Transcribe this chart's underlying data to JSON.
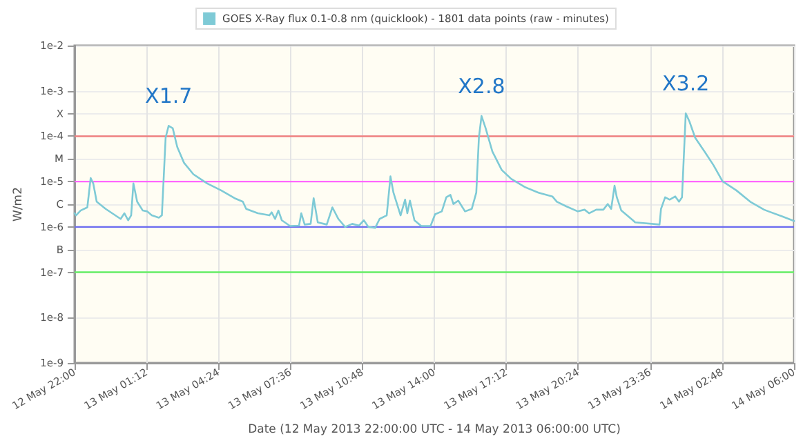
{
  "chart_data": {
    "type": "line",
    "xlabel": "Date (12 May 2013 22:00:00 UTC - 14 May 2013 06:00:00 UTC)",
    "ylabel": "W/m2",
    "legend": "top",
    "log": "y",
    "grid": true,
    "marker": "none",
    "line_style": "solid",
    "xlim": [
      "2013-05-12T22:00",
      "2013-05-14T06:00"
    ],
    "xticks": [
      {
        "value": "2013-05-12T22:00",
        "label": "12 May 22:00"
      },
      {
        "value": "2013-05-13T01:12",
        "label": "13 May 01:12"
      },
      {
        "value": "2013-05-13T04:24",
        "label": "13 May 04:24"
      },
      {
        "value": "2013-05-13T07:36",
        "label": "13 May 07:36"
      },
      {
        "value": "2013-05-13T10:48",
        "label": "13 May 10:48"
      },
      {
        "value": "2013-05-13T14:00",
        "label": "13 May 14:00"
      },
      {
        "value": "2013-05-13T17:12",
        "label": "13 May 17:12"
      },
      {
        "value": "2013-05-13T20:24",
        "label": "13 May 20:24"
      },
      {
        "value": "2013-05-13T23:36",
        "label": "13 May 23:36"
      },
      {
        "value": "2013-05-14T02:48",
        "label": "14 May 02:48"
      },
      {
        "value": "2013-05-14T06:00",
        "label": "14 May 06:00"
      }
    ],
    "ylim": [
      1e-09,
      0.01
    ],
    "yticks": [
      {
        "value": 1e-09,
        "label": "1e-9"
      },
      {
        "value": 1e-08,
        "label": "1e-8"
      },
      {
        "value": 1e-07,
        "label": "1e-7"
      },
      {
        "value": 3.16e-07,
        "label": "B"
      },
      {
        "value": 1e-06,
        "label": "1e-6"
      },
      {
        "value": 3.16e-06,
        "label": "C"
      },
      {
        "value": 1e-05,
        "label": "1e-5"
      },
      {
        "value": 3.16e-05,
        "label": "M"
      },
      {
        "value": 0.0001,
        "label": "1e-4"
      },
      {
        "value": 0.000316,
        "label": "X"
      },
      {
        "value": 0.001,
        "label": "1e-3"
      },
      {
        "value": 0.01,
        "label": "1e-2"
      }
    ],
    "ref_lines": [
      {
        "axis": "y",
        "value": 0.0001,
        "color": "#f08080"
      },
      {
        "axis": "y",
        "value": 1e-05,
        "color": "#ff66ff"
      },
      {
        "axis": "y",
        "value": 1e-06,
        "color": "#6b6bf0"
      },
      {
        "axis": "y",
        "value": 1e-07,
        "color": "#66ee66"
      }
    ],
    "annotations": [
      {
        "text": "X1.7",
        "x": "2013-05-13T02:11",
        "y": 0.00017
      },
      {
        "text": "X2.8",
        "x": "2013-05-13T16:06",
        "y": 0.00028
      },
      {
        "text": "X3.2",
        "x": "2013-05-14T01:11",
        "y": 0.00032
      }
    ],
    "series": [
      {
        "name": "GOES X-Ray flux 0.1-0.8 nm (quicklook) - 1801 data points (raw - minutes)",
        "color": "#7ecad6",
        "x": [
          "2013-05-12T22:00",
          "2013-05-12T22:04",
          "2013-05-12T22:16",
          "2013-05-12T22:34",
          "2013-05-12T22:43",
          "2013-05-12T22:50",
          "2013-05-12T22:59",
          "2013-05-12T23:23",
          "2013-05-13T00:03",
          "2013-05-13T00:13",
          "2013-05-13T00:23",
          "2013-05-13T00:31",
          "2013-05-13T00:37",
          "2013-05-13T00:47",
          "2013-05-13T01:02",
          "2013-05-13T01:14",
          "2013-05-13T01:26",
          "2013-05-13T01:45",
          "2013-05-13T01:53",
          "2013-05-13T02:03",
          "2013-05-13T02:11",
          "2013-05-13T02:22",
          "2013-05-13T02:34",
          "2013-05-13T02:52",
          "2013-05-13T03:17",
          "2013-05-13T03:54",
          "2013-05-13T04:31",
          "2013-05-13T05:07",
          "2013-05-13T05:29",
          "2013-05-13T05:38",
          "2013-05-13T06:09",
          "2013-05-13T06:40",
          "2013-05-13T06:46",
          "2013-05-13T06:55",
          "2013-05-13T07:04",
          "2013-05-13T07:13",
          "2013-05-13T07:35",
          "2013-05-13T07:59",
          "2013-05-13T08:05",
          "2013-05-13T08:14",
          "2013-05-13T08:30",
          "2013-05-13T08:38",
          "2013-05-13T08:49",
          "2013-05-13T09:13",
          "2013-05-13T09:28",
          "2013-05-13T09:44",
          "2013-05-13T10:02",
          "2013-05-13T10:21",
          "2013-05-13T10:39",
          "2013-05-13T10:52",
          "2013-05-13T11:04",
          "2013-05-13T11:22",
          "2013-05-13T11:34",
          "2013-05-13T11:53",
          "2013-05-13T12:03",
          "2013-05-13T12:11",
          "2013-05-13T12:30",
          "2013-05-13T12:42",
          "2013-05-13T12:48",
          "2013-05-13T12:55",
          "2013-05-13T13:07",
          "2013-05-13T13:25",
          "2013-05-13T13:50",
          "2013-05-13T14:02",
          "2013-05-13T14:20",
          "2013-05-13T14:32",
          "2013-05-13T14:43",
          "2013-05-13T14:51",
          "2013-05-13T15:04",
          "2013-05-13T15:22",
          "2013-05-13T15:40",
          "2013-05-13T15:52",
          "2013-05-13T15:59",
          "2013-05-13T16:06",
          "2013-05-13T16:17",
          "2013-05-13T16:35",
          "2013-05-13T17:00",
          "2013-05-13T17:25",
          "2013-05-13T18:01",
          "2013-05-13T18:38",
          "2013-05-13T19:15",
          "2013-05-13T19:27",
          "2013-05-13T19:52",
          "2013-05-13T20:23",
          "2013-05-13T20:41",
          "2013-05-13T20:53",
          "2013-05-13T21:12",
          "2013-05-13T21:31",
          "2013-05-13T21:43",
          "2013-05-13T21:52",
          "2013-05-13T22:01",
          "2013-05-13T22:07",
          "2013-05-13T22:19",
          "2013-05-13T22:50",
          "2013-05-13T22:56",
          "2013-05-14T00:01",
          "2013-05-14T00:05",
          "2013-05-14T00:16",
          "2013-05-14T00:28",
          "2013-05-14T00:43",
          "2013-05-14T00:53",
          "2013-05-14T01:01",
          "2013-05-14T01:11",
          "2013-05-14T01:21",
          "2013-05-14T01:36",
          "2013-05-14T02:01",
          "2013-05-14T02:25",
          "2013-05-14T02:49",
          "2013-05-14T03:26",
          "2013-05-14T04:03",
          "2013-05-14T04:40",
          "2013-05-14T04:52",
          "2013-05-14T05:29",
          "2013-05-14T06:00"
        ],
        "values": [
          2e-06,
          1.8e-06,
          2.3e-06,
          2.7e-06,
          1.2e-05,
          9e-06,
          3.6e-06,
          2.5e-06,
          1.5e-06,
          2e-06,
          1.4e-06,
          1.8e-06,
          9.1e-06,
          3.6e-06,
          2.3e-06,
          2.2e-06,
          1.8e-06,
          1.6e-06,
          1.8e-06,
          9.3e-05,
          0.00017,
          0.00015,
          5.8e-05,
          2.6e-05,
          1.45e-05,
          9.1e-06,
          6.4e-06,
          4.3e-06,
          3.6e-06,
          2.5e-06,
          2e-06,
          1.8e-06,
          2.1e-06,
          1.5e-06,
          2.3e-06,
          1.4e-06,
          1.05e-06,
          1.07e-06,
          2e-06,
          1.13e-06,
          1.17e-06,
          4.3e-06,
          1.26e-06,
          1.13e-06,
          2.7e-06,
          1.5e-06,
          1e-06,
          1.17e-06,
          1.07e-06,
          1.4e-06,
          1e-06,
          9.5e-07,
          1.5e-06,
          1.8e-06,
          1.3e-05,
          5.7e-06,
          1.8e-06,
          4e-06,
          2e-06,
          3.8e-06,
          1.4e-06,
          1.05e-06,
          1.05e-06,
          1.9e-06,
          2.2e-06,
          4.5e-06,
          5.1e-06,
          3.2e-06,
          3.8e-06,
          2.2e-06,
          2.5e-06,
          5.7e-06,
          9.3e-05,
          0.00028,
          0.00015,
          4.6e-05,
          1.8e-05,
          1.15e-05,
          7.6e-06,
          5.7e-06,
          4.7e-06,
          3.6e-06,
          2.85e-06,
          2.2e-06,
          2.4e-06,
          2e-06,
          2.4e-06,
          2.4e-06,
          3.2e-06,
          2.5e-06,
          8.1e-06,
          4.5e-06,
          2.3e-06,
          1.4e-06,
          1.26e-06,
          1.13e-06,
          2.5e-06,
          4.5e-06,
          4e-06,
          4.7e-06,
          3.6e-06,
          4.5e-06,
          0.00032,
          0.00021,
          9.3e-05,
          4.6e-05,
          2.3e-05,
          1.02e-05,
          6.4e-06,
          3.6e-06,
          2.4e-06,
          2.2e-06,
          1.7e-06,
          1.35e-06
        ]
      }
    ]
  }
}
